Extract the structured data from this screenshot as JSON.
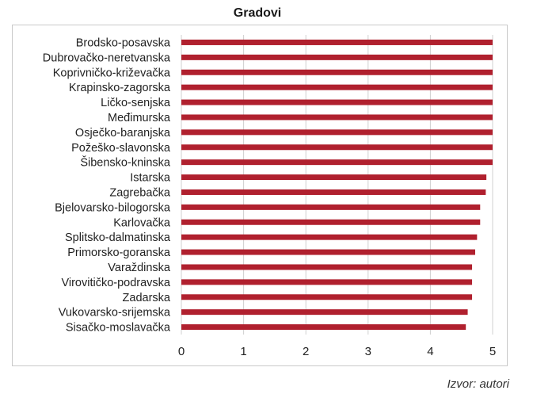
{
  "source": "Izvor: autori",
  "chart_data": {
    "type": "bar",
    "orientation": "horizontal",
    "title": "Gradovi",
    "xlabel": "",
    "ylabel": "",
    "xlim": [
      0,
      5
    ],
    "x_ticks": [
      "0",
      "1",
      "2",
      "3",
      "4",
      "5"
    ],
    "grid": "vertical",
    "bar_color": "#b0202e",
    "categories": [
      "Brodsko-posavska",
      "Dubrovačko-neretvanska",
      "Koprivničko-križevačka",
      "Krapinsko-zagorska",
      "Ličko-senjska",
      "Međimurska",
      "Osječko-baranjska",
      "Požeško-slavonska",
      "Šibensko-kninska",
      "Istarska",
      "Zagrebačka",
      "Bjelovarsko-bilogorska",
      "Karlovačka",
      "Splitsko-dalmatinska",
      "Primorsko-goranska",
      "Varaždinska",
      "Virovitičko-podravska",
      "Zadarska",
      "Vukovarsko-srijemska",
      "Sisačko-moslavačka"
    ],
    "values": [
      5.0,
      5.0,
      5.0,
      5.0,
      5.0,
      5.0,
      5.0,
      5.0,
      5.0,
      4.9,
      4.89,
      4.8,
      4.8,
      4.75,
      4.72,
      4.67,
      4.67,
      4.67,
      4.6,
      4.57
    ]
  }
}
